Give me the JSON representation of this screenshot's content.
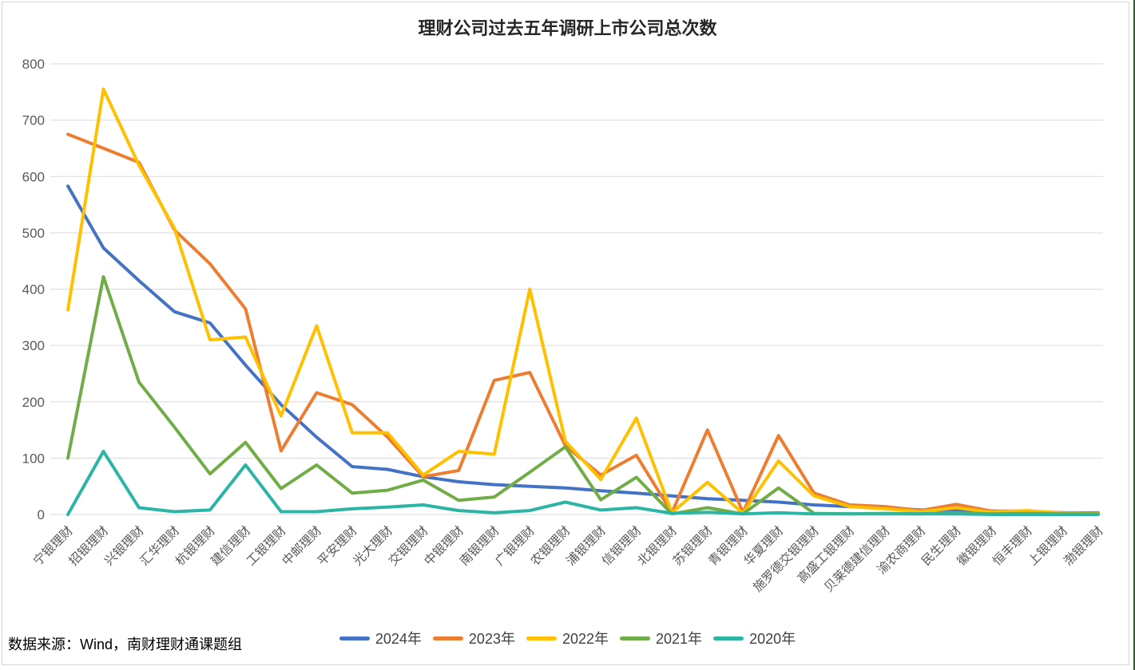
{
  "page": {
    "source_note": "数据来源：Wind，南财理财通课题组",
    "frame_border_color": "#D6D6D6",
    "right_edge_strip_color": "#375633",
    "background_color": "#FFFFFF"
  },
  "chart_data": {
    "type": "line",
    "title": "理财公司过去五年调研上市公司总次数",
    "xlabel": "",
    "ylabel": "",
    "ylim": [
      0,
      800
    ],
    "ytick_step": 100,
    "ytick_labels": [
      "0",
      "100",
      "200",
      "300",
      "400",
      "500",
      "600",
      "700",
      "800"
    ],
    "grid": true,
    "gridline_color": "#D9D9D9",
    "axis_label_color": "#595959",
    "legend_position": "bottom",
    "categories": [
      "宁银理财",
      "招银理财",
      "兴银理财",
      "汇华理财",
      "杭银理财",
      "建信理财",
      "工银理财",
      "中邮理财",
      "平安理财",
      "光大理财",
      "交银理财",
      "中银理财",
      "南银理财",
      "广银理财",
      "农银理财",
      "浦银理财",
      "信银理财",
      "北银理财",
      "苏银理财",
      "青银理财",
      "华夏理财",
      "施罗德交银理财",
      "高盛工银理财",
      "贝莱德建信理财",
      "渝农商理财",
      "民生理财",
      "徽银理财",
      "恒丰理财",
      "上银理财",
      "渤银理财"
    ],
    "series": [
      {
        "name": "2024年",
        "color": "#4472C4",
        "values": [
          583,
          473,
          415,
          360,
          340,
          265,
          195,
          137,
          85,
          80,
          67,
          58,
          53,
          50,
          47,
          42,
          38,
          33,
          28,
          25,
          22,
          17,
          14,
          12,
          8,
          8,
          6,
          4,
          3,
          3
        ]
      },
      {
        "name": "2023年",
        "color": "#ED7D31",
        "values": [
          675,
          650,
          625,
          505,
          445,
          365,
          113,
          216,
          195,
          137,
          67,
          78,
          238,
          252,
          122,
          70,
          105,
          3,
          150,
          4,
          140,
          38,
          17,
          14,
          7,
          18,
          6,
          6,
          3,
          2
        ]
      },
      {
        "name": "2022年",
        "color": "#FFC000",
        "values": [
          363,
          755,
          620,
          508,
          310,
          315,
          175,
          335,
          145,
          145,
          70,
          112,
          107,
          400,
          130,
          62,
          171,
          3,
          57,
          2,
          95,
          33,
          14,
          10,
          5,
          12,
          4,
          7,
          2,
          2
        ]
      },
      {
        "name": "2021年",
        "color": "#70AD47",
        "values": [
          100,
          422,
          235,
          155,
          72,
          128,
          46,
          88,
          38,
          43,
          61,
          25,
          31,
          75,
          120,
          26,
          66,
          1,
          12,
          1,
          47,
          2,
          1,
          2,
          1,
          3,
          1,
          2,
          1,
          1
        ]
      },
      {
        "name": "2020年",
        "color": "#2CB5A5",
        "values": [
          0,
          112,
          12,
          5,
          8,
          88,
          5,
          5,
          10,
          13,
          17,
          7,
          3,
          7,
          22,
          8,
          12,
          2,
          4,
          1,
          3,
          1,
          1,
          1,
          1,
          1,
          0,
          0,
          0,
          0
        ]
      }
    ]
  }
}
